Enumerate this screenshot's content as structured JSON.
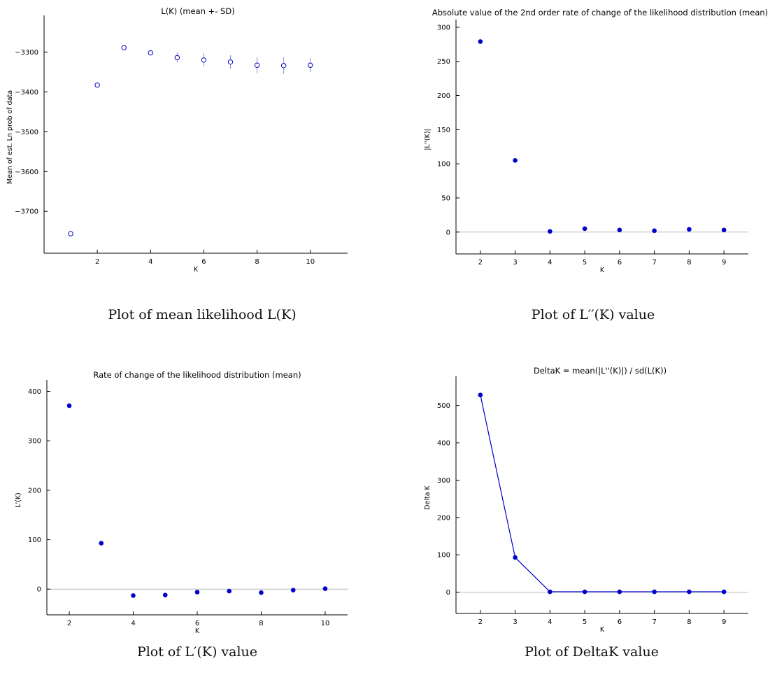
{
  "captions": [
    "Plot of mean likelihood L(K)",
    "Plot of L′′(K) value",
    "Plot of L′(K) value",
    "Plot of DeltaK value"
  ],
  "chart_data": [
    {
      "type": "scatter",
      "title": "L(K) (mean +- SD)",
      "xlabel": "K",
      "ylabel": "Mean of est. Ln prob of data",
      "x": [
        1,
        2,
        3,
        4,
        5,
        6,
        7,
        8,
        9,
        10
      ],
      "y": [
        -3756,
        -3383,
        -3289,
        -3302,
        -3314,
        -3320,
        -3325,
        -3333,
        -3334,
        -3333
      ],
      "sd": [
        2,
        4,
        4,
        6,
        13,
        17,
        17,
        20,
        21,
        18
      ],
      "xticks": [
        2,
        4,
        6,
        8,
        10
      ],
      "yticks": [
        -3300,
        -3400,
        -3500,
        -3600,
        -3700
      ],
      "xlim": [
        0,
        11.4
      ],
      "ylim": [
        -3805,
        -3222
      ],
      "marker": "open-circle",
      "errorbars": true,
      "zero_line": false,
      "color": "#0000cc"
    },
    {
      "type": "scatter",
      "title": "Absolute value of the 2nd order rate of change of the likelihood distribution (mean)",
      "xlabel": "K",
      "ylabel": "|L''(K)|",
      "x": [
        2,
        3,
        4,
        5,
        6,
        7,
        8,
        9
      ],
      "y": [
        279,
        105,
        1,
        5,
        3,
        2,
        4,
        3
      ],
      "xticks": [
        2,
        3,
        4,
        5,
        6,
        7,
        8,
        9
      ],
      "yticks": [
        0,
        50,
        100,
        150,
        200,
        250,
        300
      ],
      "xlim": [
        1.3,
        9.7
      ],
      "ylim": [
        -32,
        303
      ],
      "marker": "filled-circle",
      "zero_line": true,
      "color": "#0000cc"
    },
    {
      "type": "scatter",
      "title": "Rate of change of the likelihood distribution (mean)",
      "xlabel": "K",
      "ylabel": "L'(K)",
      "x": [
        2,
        3,
        4,
        5,
        6,
        7,
        8,
        9,
        10
      ],
      "y": [
        371,
        93,
        -13,
        -12,
        -6,
        -4,
        -7,
        -2,
        1
      ],
      "xticks": [
        2,
        4,
        6,
        8,
        10
      ],
      "yticks": [
        0,
        100,
        200,
        300,
        400
      ],
      "xlim": [
        1.3,
        10.7
      ],
      "ylim": [
        -52,
        412
      ],
      "marker": "filled-circle",
      "zero_line": true,
      "color": "#0000cc"
    },
    {
      "type": "line",
      "title": "DeltaK = mean(|L''(K)|) / sd(L(K))",
      "xlabel": "K",
      "ylabel": "Delta K",
      "x": [
        2,
        3,
        4,
        5,
        6,
        7,
        8,
        9
      ],
      "y": [
        528,
        93,
        1,
        1,
        1,
        1,
        1,
        1
      ],
      "xticks": [
        2,
        3,
        4,
        5,
        6,
        7,
        8,
        9
      ],
      "yticks": [
        0,
        100,
        200,
        300,
        400,
        500
      ],
      "xlim": [
        1.3,
        9.7
      ],
      "ylim": [
        -57,
        563
      ],
      "marker": "filled-circle",
      "connect": true,
      "zero_line": true,
      "color": "#0000cc"
    }
  ]
}
